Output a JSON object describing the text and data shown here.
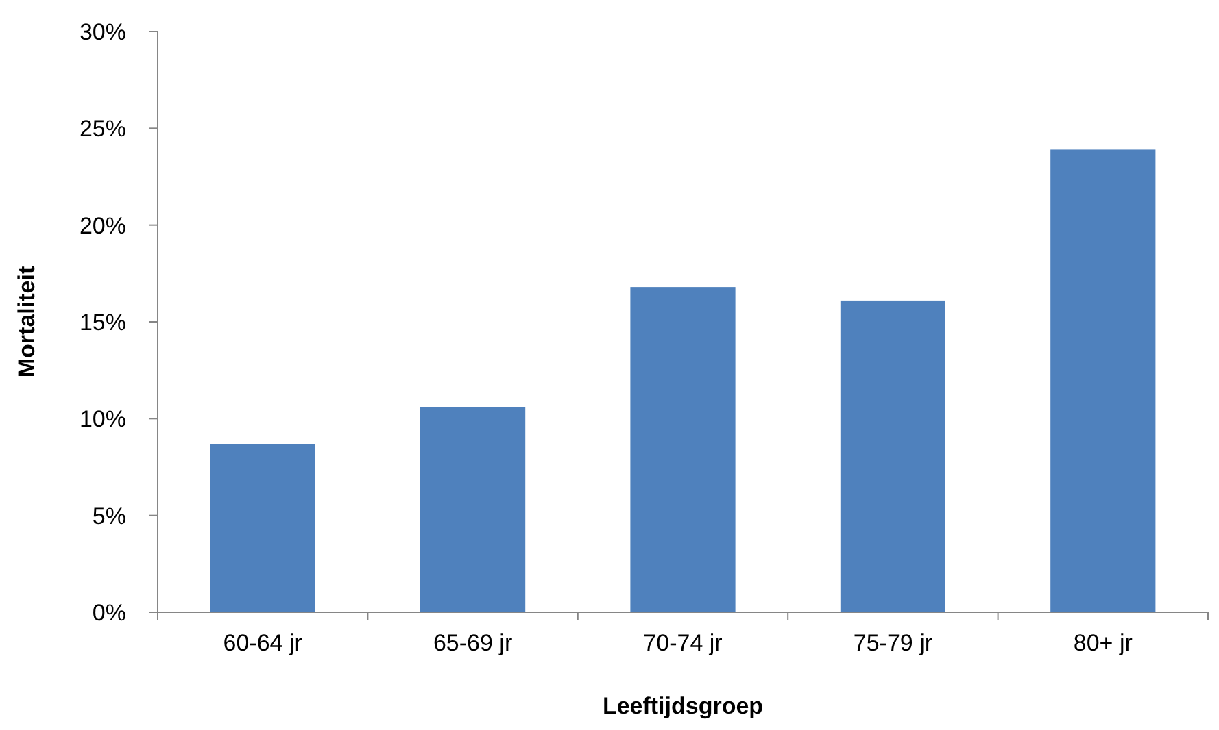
{
  "chart_data": {
    "type": "bar",
    "xlabel": "Leeftijdsgroep",
    "ylabel": "Mortaliteit",
    "categories": [
      "60-64 jr",
      "65-69 jr",
      "70-74 jr",
      "75-79 jr",
      "80+ jr"
    ],
    "values": [
      8.7,
      10.6,
      16.8,
      16.1,
      23.9
    ],
    "color": "#4f81bd",
    "ylim": [
      0,
      30
    ],
    "yticks": [
      {
        "value": 0,
        "label": "0%"
      },
      {
        "value": 5,
        "label": "5%"
      },
      {
        "value": 10,
        "label": "10%"
      },
      {
        "value": 15,
        "label": "15%"
      },
      {
        "value": 20,
        "label": "20%"
      },
      {
        "value": 25,
        "label": "25%"
      },
      {
        "value": 30,
        "label": "30%"
      }
    ],
    "grid": false
  }
}
